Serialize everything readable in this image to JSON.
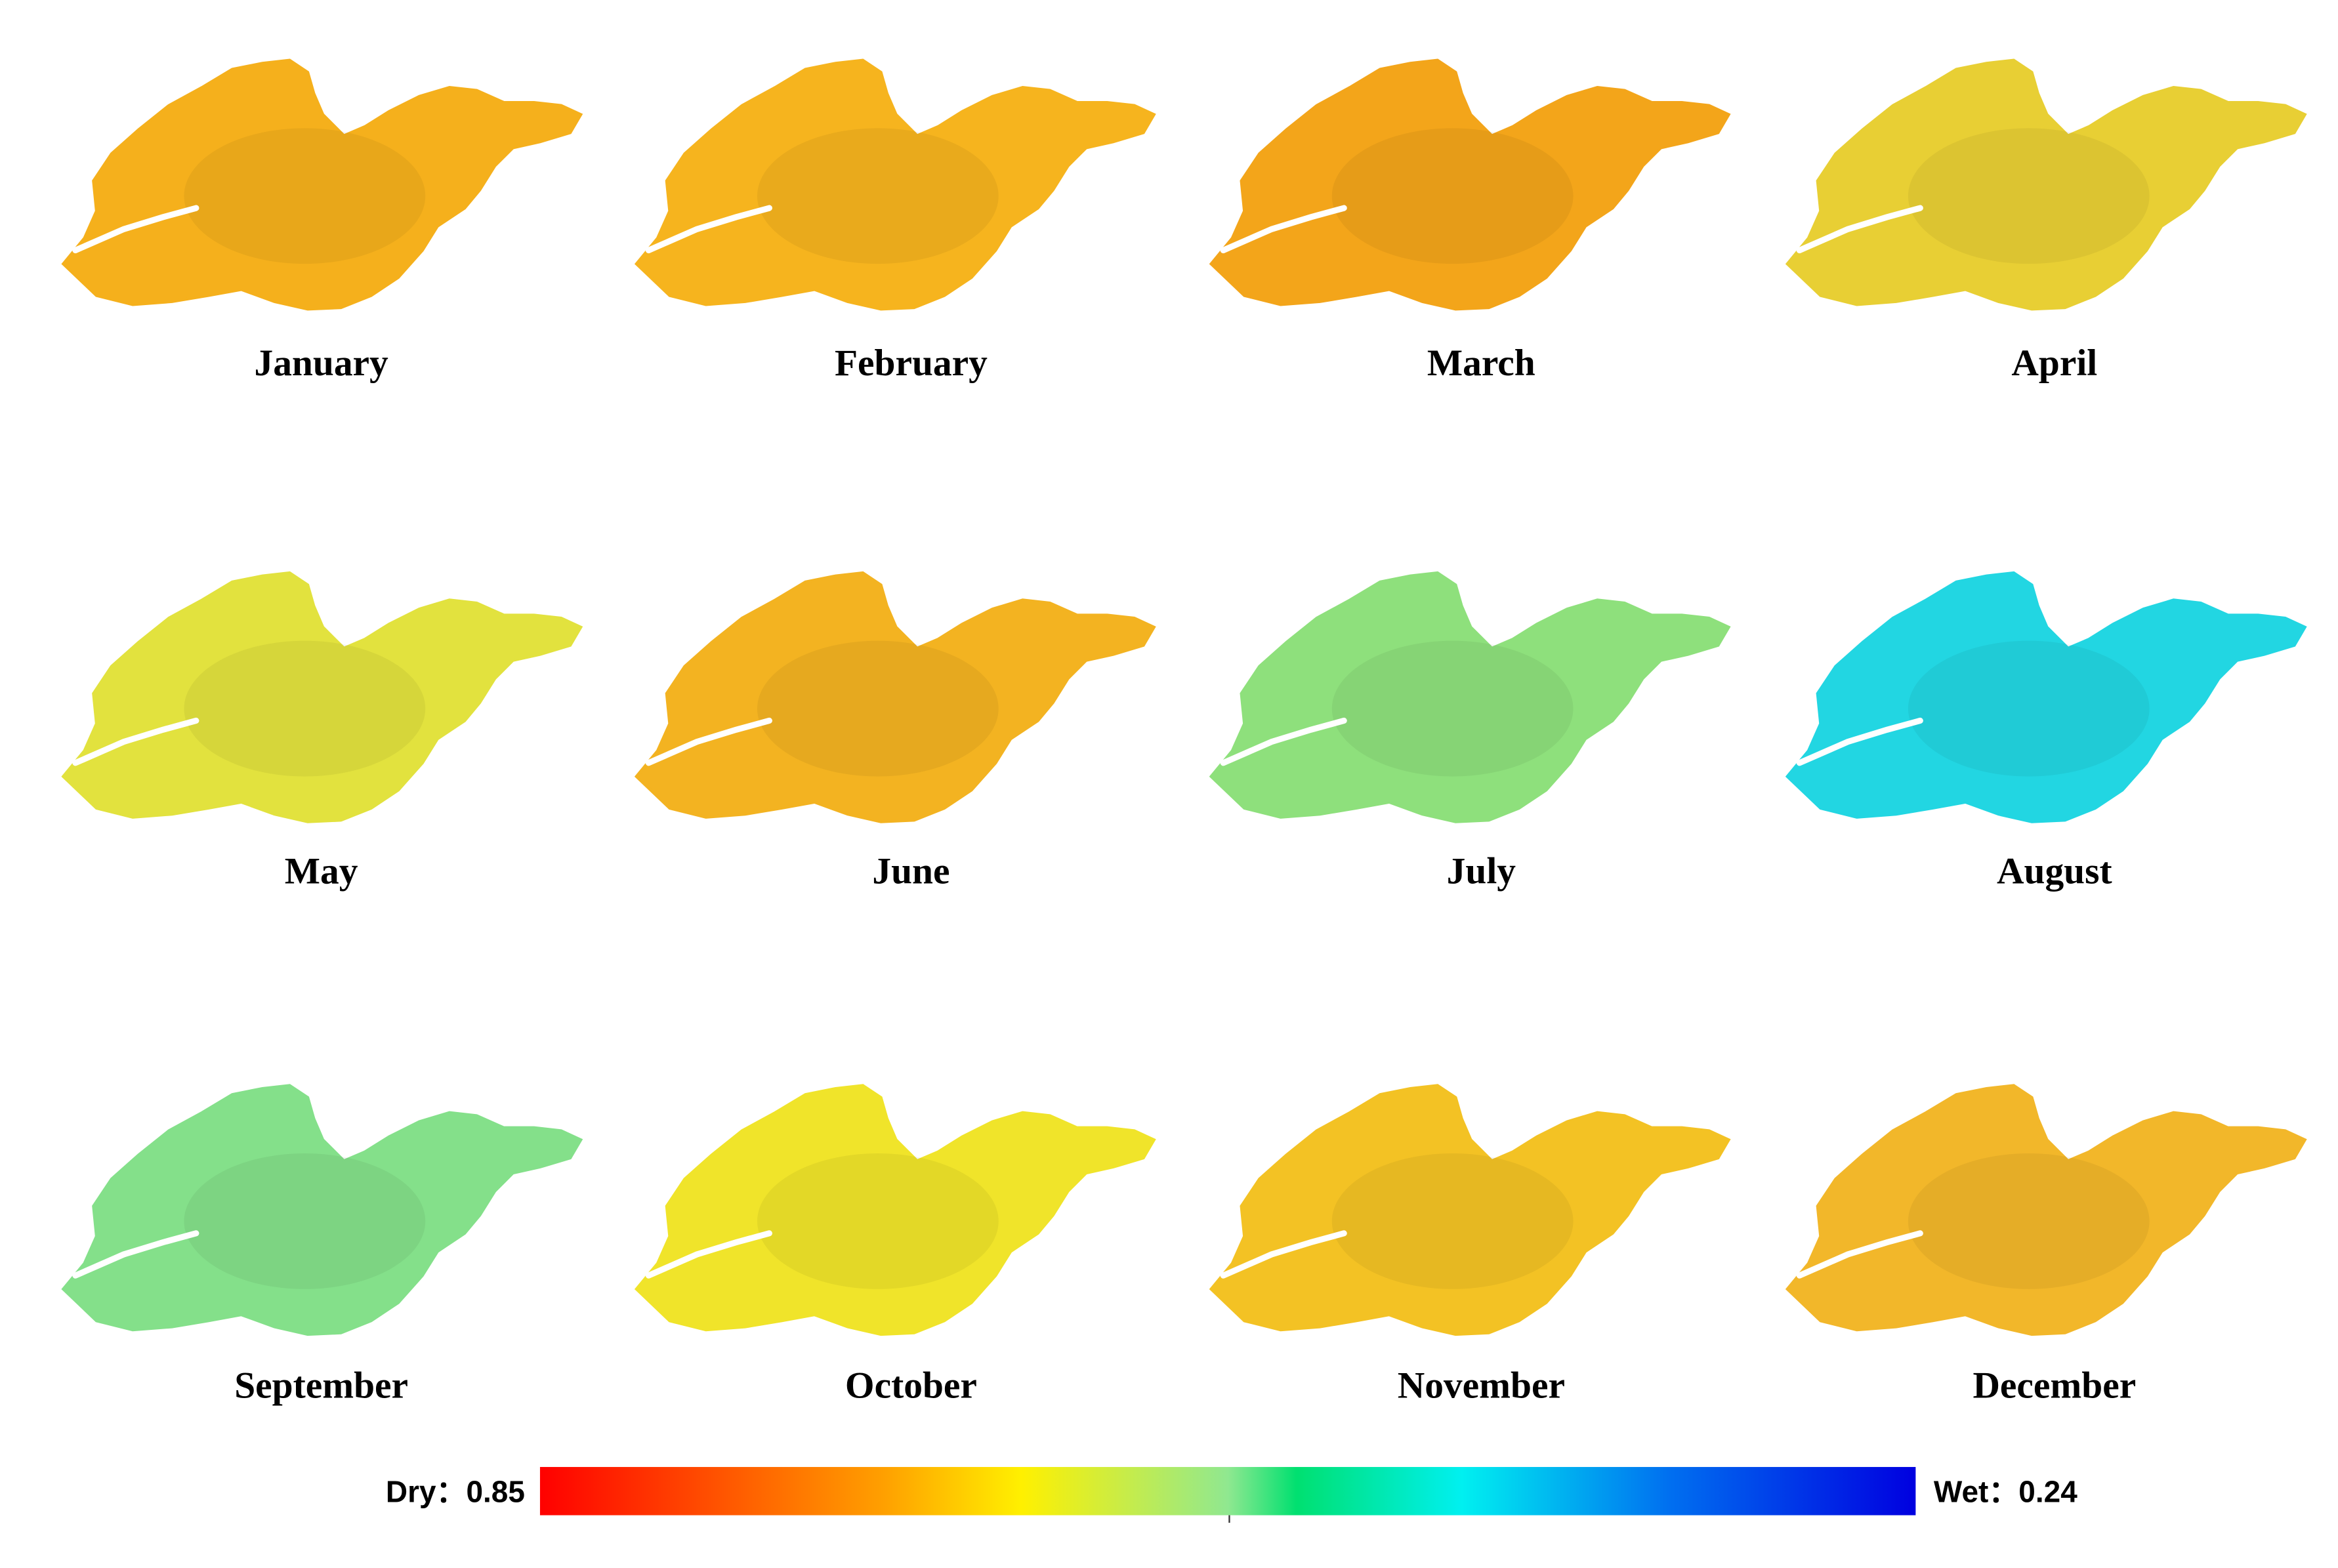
{
  "panels": [
    {
      "label": "January",
      "color": "#f5b01c"
    },
    {
      "label": "February",
      "color": "#f6b41e"
    },
    {
      "label": "March",
      "color": "#f3a51a"
    },
    {
      "label": "April",
      "color": "#e8cf34"
    },
    {
      "label": "May",
      "color": "#e2e23e"
    },
    {
      "label": "June",
      "color": "#f3b321"
    },
    {
      "label": "July",
      "color": "#8ee07c"
    },
    {
      "label": "August",
      "color": "#22d6e2"
    },
    {
      "label": "September",
      "color": "#84e08a"
    },
    {
      "label": "October",
      "color": "#f0e42a"
    },
    {
      "label": "November",
      "color": "#f3c224"
    },
    {
      "label": "December",
      "color": "#f2b72a"
    }
  ],
  "legend": {
    "dry": "Dry：0.85",
    "wet": "Wet：0.24"
  }
}
